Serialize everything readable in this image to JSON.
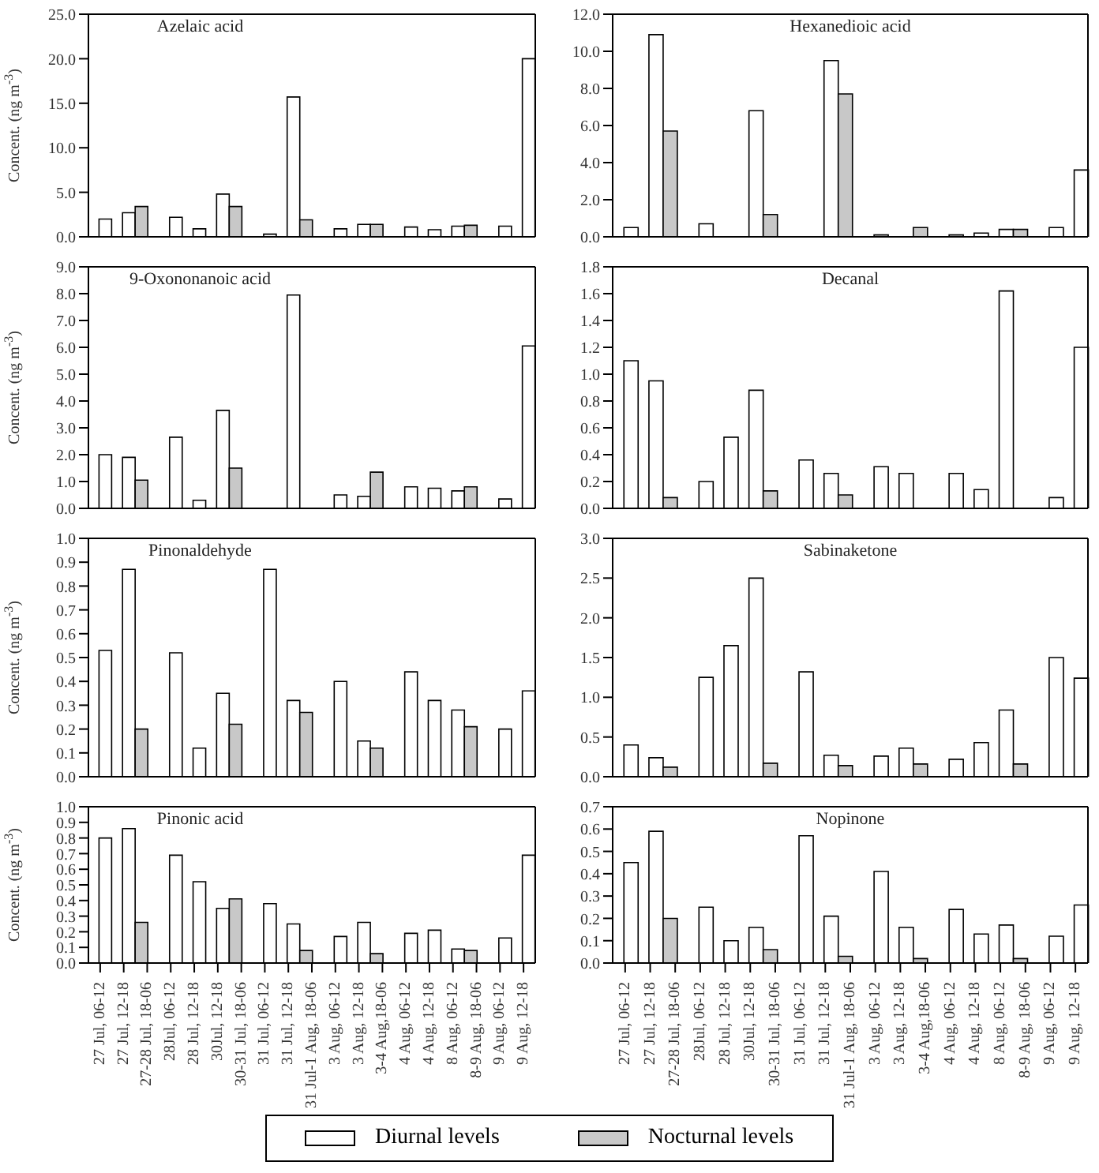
{
  "chart_data": [
    {
      "type": "bar",
      "title": "Azelaic acid",
      "ylabel": "Concent. (ng m$^{-3}$)",
      "tick_labels": "y",
      "categories": [
        null,
        null,
        null,
        null,
        null,
        null,
        null,
        null,
        null,
        null,
        null,
        null,
        null,
        null,
        null,
        null,
        null,
        null,
        null
      ],
      "ylim": [
        0,
        25
      ],
      "yticks": [
        {
          "value": 0,
          "label": "0.0"
        },
        {
          "value": 5,
          "label": "5.0"
        },
        {
          "value": 10,
          "label": "10.0"
        },
        {
          "value": 15,
          "label": "15.0"
        },
        {
          "value": 20,
          "label": "20.0"
        },
        {
          "value": 25,
          "label": "25.0"
        }
      ],
      "series": [
        {
          "color": "#ffffff",
          "values": [
            2.0,
            2.7,
            null,
            2.2,
            0.9,
            4.8,
            null,
            0.3,
            15.7,
            null,
            0.9,
            1.4,
            null,
            1.1,
            0.8,
            1.2,
            null,
            1.2,
            20.0
          ]
        },
        {
          "color": "#c8c8c8",
          "values": [
            null,
            null,
            3.4,
            null,
            null,
            null,
            3.4,
            null,
            null,
            1.9,
            null,
            null,
            1.4,
            null,
            null,
            null,
            1.3,
            null,
            null
          ]
        }
      ]
    },
    {
      "type": "bar",
      "title": "Hexanedioic acid",
      "tick_labels": "y",
      "categories": [
        null,
        null,
        null,
        null,
        null,
        null,
        null,
        null,
        null,
        null,
        null,
        null,
        null,
        null,
        null,
        null,
        null,
        null,
        null
      ],
      "ylim": [
        0,
        12
      ],
      "yticks": [
        {
          "value": 0,
          "label": "0.0"
        },
        {
          "value": 2,
          "label": "2.0"
        },
        {
          "value": 4,
          "label": "4.0"
        },
        {
          "value": 6,
          "label": "6.0"
        },
        {
          "value": 8,
          "label": "8.0"
        },
        {
          "value": 10,
          "label": "10.0"
        },
        {
          "value": 12,
          "label": "12.0"
        }
      ],
      "series": [
        {
          "color": "#ffffff",
          "values": [
            0.5,
            10.9,
            null,
            0.7,
            null,
            6.8,
            null,
            null,
            9.5,
            null,
            0.1,
            null,
            null,
            0.1,
            0.2,
            0.4,
            null,
            0.5,
            3.6
          ]
        },
        {
          "color": "#c8c8c8",
          "values": [
            null,
            null,
            5.7,
            null,
            null,
            null,
            1.2,
            null,
            null,
            7.7,
            null,
            null,
            0.5,
            null,
            null,
            null,
            0.4,
            null,
            null
          ]
        }
      ]
    },
    {
      "type": "bar",
      "title": "9-Oxononanoic acid",
      "ylabel": "Concent. (ng m$^{-3}$)",
      "tick_labels": "y",
      "categories": [
        null,
        null,
        null,
        null,
        null,
        null,
        null,
        null,
        null,
        null,
        null,
        null,
        null,
        null,
        null,
        null,
        null,
        null,
        null
      ],
      "ylim": [
        0,
        9
      ],
      "yticks": [
        {
          "value": 0,
          "label": "0.0"
        },
        {
          "value": 1,
          "label": "1.0"
        },
        {
          "value": 2,
          "label": "2.0"
        },
        {
          "value": 3,
          "label": "3.0"
        },
        {
          "value": 4,
          "label": "4.0"
        },
        {
          "value": 5,
          "label": "5.0"
        },
        {
          "value": 6,
          "label": "6.0"
        },
        {
          "value": 7,
          "label": "7.0"
        },
        {
          "value": 8,
          "label": "8.0"
        },
        {
          "value": 9,
          "label": "9.0"
        }
      ],
      "series": [
        {
          "color": "#ffffff",
          "values": [
            2.0,
            1.9,
            null,
            2.65,
            0.3,
            3.65,
            null,
            null,
            7.95,
            null,
            0.5,
            0.45,
            null,
            0.8,
            0.75,
            0.65,
            null,
            0.35,
            6.05
          ]
        },
        {
          "color": "#c8c8c8",
          "values": [
            null,
            null,
            1.05,
            null,
            null,
            null,
            1.5,
            null,
            null,
            null,
            null,
            null,
            1.35,
            null,
            null,
            null,
            0.8,
            null,
            null
          ]
        }
      ]
    },
    {
      "type": "bar",
      "title": "Decanal",
      "tick_labels": "y",
      "categories": [
        null,
        null,
        null,
        null,
        null,
        null,
        null,
        null,
        null,
        null,
        null,
        null,
        null,
        null,
        null,
        null,
        null,
        null,
        null
      ],
      "ylim": [
        0,
        1.8
      ],
      "yticks": [
        {
          "value": 0,
          "label": "0.0"
        },
        {
          "value": 0.2,
          "label": "0.2"
        },
        {
          "value": 0.4,
          "label": "0.4"
        },
        {
          "value": 0.6,
          "label": "0.6"
        },
        {
          "value": 0.8,
          "label": "0.8"
        },
        {
          "value": 1.0,
          "label": "1.0"
        },
        {
          "value": 1.2,
          "label": "1.2"
        },
        {
          "value": 1.4,
          "label": "1.4"
        },
        {
          "value": 1.6,
          "label": "1.6"
        },
        {
          "value": 1.8,
          "label": "1.8"
        }
      ],
      "series": [
        {
          "color": "#ffffff",
          "values": [
            1.1,
            0.95,
            null,
            0.2,
            0.53,
            0.88,
            null,
            0.36,
            0.26,
            null,
            0.31,
            0.26,
            null,
            0.26,
            0.14,
            1.62,
            null,
            0.08,
            1.2
          ]
        },
        {
          "color": "#c8c8c8",
          "values": [
            null,
            null,
            0.08,
            null,
            null,
            null,
            0.13,
            null,
            null,
            0.1,
            null,
            null,
            null,
            null,
            null,
            null,
            null,
            null,
            null
          ]
        }
      ]
    },
    {
      "type": "bar",
      "title": "Pinonaldehyde",
      "ylabel": "Concent. (ng m$^{-3}$)",
      "tick_labels": "y",
      "categories": [
        null,
        null,
        null,
        null,
        null,
        null,
        null,
        null,
        null,
        null,
        null,
        null,
        null,
        null,
        null,
        null,
        null,
        null,
        null
      ],
      "ylim": [
        0,
        1.0
      ],
      "yticks": [
        {
          "value": 0,
          "label": "0.0"
        },
        {
          "value": 0.1,
          "label": "0.1"
        },
        {
          "value": 0.2,
          "label": "0.2"
        },
        {
          "value": 0.3,
          "label": "0.3"
        },
        {
          "value": 0.4,
          "label": "0.4"
        },
        {
          "value": 0.5,
          "label": "0.5"
        },
        {
          "value": 0.6,
          "label": "0.6"
        },
        {
          "value": 0.7,
          "label": "0.7"
        },
        {
          "value": 0.8,
          "label": "0.8"
        },
        {
          "value": 0.9,
          "label": "0.9"
        },
        {
          "value": 1.0,
          "label": "1.0"
        }
      ],
      "series": [
        {
          "color": "#ffffff",
          "values": [
            0.53,
            0.87,
            null,
            0.52,
            0.12,
            0.35,
            null,
            0.87,
            0.32,
            null,
            0.4,
            0.15,
            null,
            0.44,
            0.32,
            0.28,
            null,
            0.2,
            0.36
          ]
        },
        {
          "color": "#c8c8c8",
          "values": [
            null,
            null,
            0.2,
            null,
            null,
            null,
            0.22,
            null,
            null,
            0.27,
            null,
            null,
            0.12,
            null,
            null,
            null,
            0.21,
            null,
            null
          ]
        }
      ]
    },
    {
      "type": "bar",
      "title": "Sabinaketone",
      "tick_labels": "y",
      "categories": [
        null,
        null,
        null,
        null,
        null,
        null,
        null,
        null,
        null,
        null,
        null,
        null,
        null,
        null,
        null,
        null,
        null,
        null,
        null
      ],
      "ylim": [
        0,
        3.0
      ],
      "yticks": [
        {
          "value": 0,
          "label": "0.0"
        },
        {
          "value": 0.5,
          "label": "0.5"
        },
        {
          "value": 1.0,
          "label": "1.0"
        },
        {
          "value": 1.5,
          "label": "1.5"
        },
        {
          "value": 2.0,
          "label": "2.0"
        },
        {
          "value": 2.5,
          "label": "2.5"
        },
        {
          "value": 3.0,
          "label": "3.0"
        }
      ],
      "series": [
        {
          "color": "#ffffff",
          "values": [
            0.4,
            0.24,
            null,
            1.25,
            1.65,
            2.5,
            null,
            1.32,
            0.27,
            null,
            0.26,
            0.36,
            null,
            0.22,
            0.43,
            0.84,
            null,
            1.5,
            1.24
          ]
        },
        {
          "color": "#c8c8c8",
          "values": [
            null,
            null,
            0.12,
            null,
            null,
            null,
            0.17,
            null,
            null,
            0.14,
            null,
            null,
            0.16,
            null,
            null,
            null,
            0.16,
            null,
            null
          ]
        }
      ]
    },
    {
      "type": "bar",
      "title": "Pinonic acid",
      "ylabel": "Concent. (ng m$^{-3}$)",
      "legend": "bottom",
      "categories": [
        "27 Jul, 06-12",
        "27 Jul, 12-18",
        "27-28 Jul, 18-06",
        "28Jul, 06-12",
        "28 Jul, 12-18",
        "30Jul, 12-18",
        "30-31 Jul, 18-06",
        "31 Jul, 06-12",
        "31 Jul, 12-18",
        "31 Jul-1 Aug, 18-06",
        "3 Aug, 06-12",
        "3 Aug, 12-18",
        "3-4 Aug,18-06",
        "4 Aug, 06-12",
        "4 Aug, 12-18",
        "8 Aug, 06-12",
        "8-9 Aug, 18-06",
        "9 Aug, 06-12",
        "9 Aug, 12-18"
      ],
      "ylim": [
        0,
        1.0
      ],
      "yticks": [
        {
          "value": 0,
          "label": "0.0"
        },
        {
          "value": 0.1,
          "label": "0.1"
        },
        {
          "value": 0.2,
          "label": "0.2"
        },
        {
          "value": 0.3,
          "label": "0.3"
        },
        {
          "value": 0.4,
          "label": "0.4"
        },
        {
          "value": 0.5,
          "label": "0.5"
        },
        {
          "value": 0.6,
          "label": "0.6"
        },
        {
          "value": 0.7,
          "label": "0.7"
        },
        {
          "value": 0.8,
          "label": "0.8"
        },
        {
          "value": 0.9,
          "label": "0.9"
        },
        {
          "value": 1.0,
          "label": "1.0"
        }
      ],
      "series": [
        {
          "name": "Diurnal levels",
          "color": "#ffffff",
          "values": [
            0.8,
            0.86,
            null,
            0.69,
            0.52,
            0.35,
            null,
            0.38,
            0.25,
            null,
            0.17,
            0.26,
            null,
            0.19,
            0.21,
            0.09,
            null,
            0.16,
            0.69
          ]
        },
        {
          "name": "Nocturnal levels",
          "color": "#c8c8c8",
          "values": [
            null,
            null,
            0.26,
            null,
            null,
            null,
            0.41,
            null,
            null,
            0.08,
            null,
            null,
            0.06,
            null,
            null,
            null,
            0.08,
            null,
            null
          ]
        }
      ]
    },
    {
      "type": "bar",
      "title": "Nopinone",
      "categories": [
        "27 Jul, 06-12",
        "27 Jul, 12-18",
        "27-28 Jul, 18-06",
        "28Jul, 06-12",
        "28 Jul, 12-18",
        "30Jul, 12-18",
        "30-31 Jul, 18-06",
        "31 Jul, 06-12",
        "31 Jul, 12-18",
        "31 Jul-1 Aug, 18-06",
        "3 Aug, 06-12",
        "3 Aug, 12-18",
        "3-4 Aug,18-06",
        "4 Aug, 06-12",
        "4 Aug, 12-18",
        "8 Aug, 06-12",
        "8-9 Aug, 18-06",
        "9 Aug, 06-12",
        "9 Aug, 12-18"
      ],
      "ylim": [
        0,
        0.7
      ],
      "yticks": [
        {
          "value": 0,
          "label": "0.0"
        },
        {
          "value": 0.1,
          "label": "0.1"
        },
        {
          "value": 0.2,
          "label": "0.2"
        },
        {
          "value": 0.3,
          "label": "0.3"
        },
        {
          "value": 0.4,
          "label": "0.4"
        },
        {
          "value": 0.5,
          "label": "0.5"
        },
        {
          "value": 0.6,
          "label": "0.6"
        },
        {
          "value": 0.7,
          "label": "0.7"
        }
      ],
      "series": [
        {
          "color": "#ffffff",
          "values": [
            0.45,
            0.59,
            null,
            0.25,
            0.1,
            0.16,
            null,
            0.57,
            0.21,
            null,
            0.41,
            0.16,
            null,
            0.24,
            0.13,
            0.17,
            null,
            0.12,
            0.26
          ]
        },
        {
          "color": "#c8c8c8",
          "values": [
            null,
            null,
            0.2,
            null,
            null,
            null,
            0.06,
            null,
            null,
            0.03,
            null,
            null,
            0.02,
            null,
            null,
            null,
            0.02,
            null,
            null
          ]
        }
      ]
    }
  ]
}
